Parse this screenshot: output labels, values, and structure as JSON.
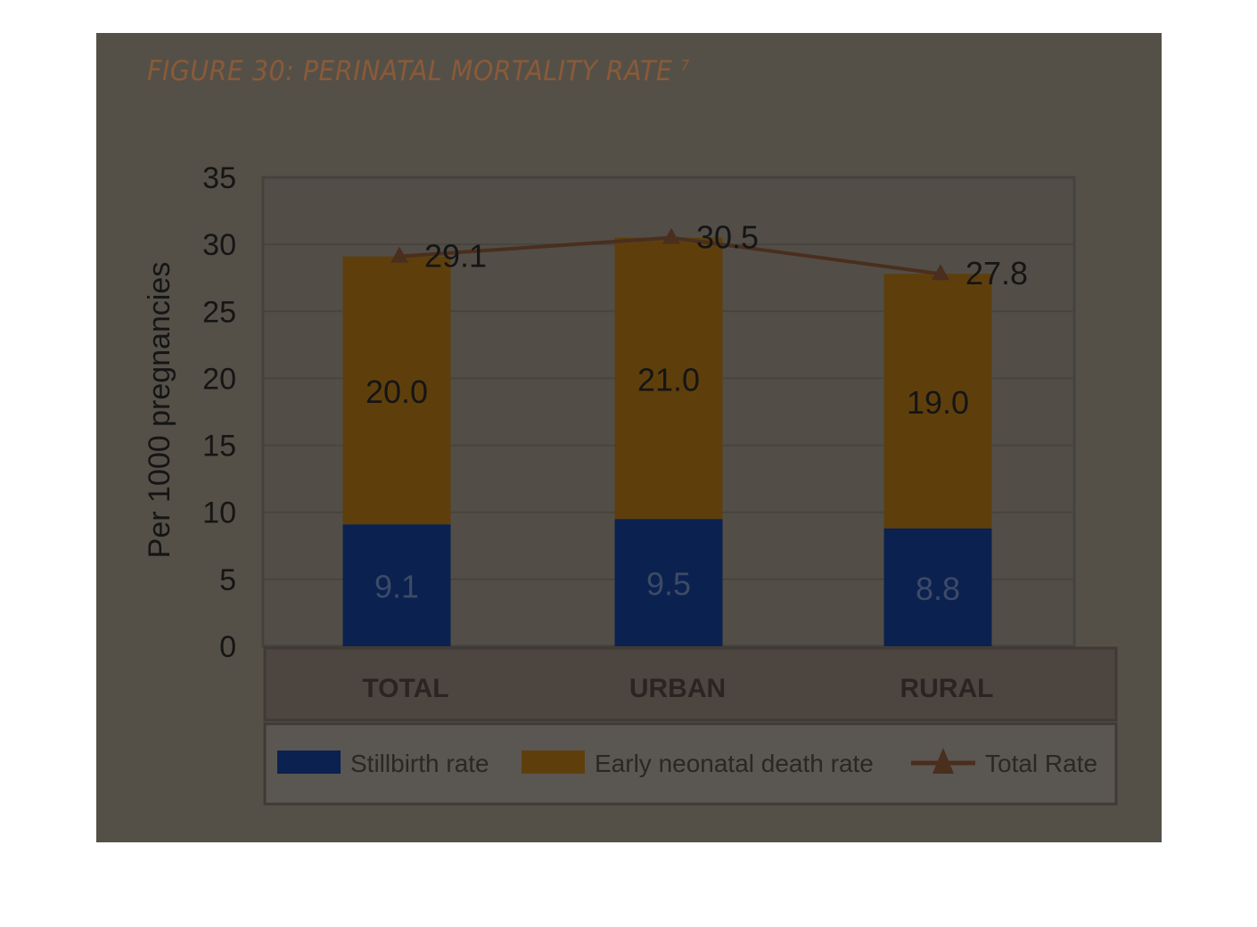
{
  "chart_data": {
    "type": "bar",
    "stacked": true,
    "title": "FIGURE 30: PERINATAL MORTALITY RATE",
    "title_superscript": "7",
    "ylabel": "Per 1000 pregnancies",
    "xlabel": "",
    "ylim": [
      0,
      35
    ],
    "yticks": [
      0,
      5,
      10,
      15,
      20,
      25,
      30,
      35
    ],
    "grid": true,
    "legend_placement": "bottom",
    "categories": [
      "TOTAL",
      "URBAN",
      "RURAL"
    ],
    "series": [
      {
        "name": "Stillbirth rate",
        "type": "bar",
        "color": "#0b2150",
        "values": [
          9.1,
          9.5,
          8.8
        ],
        "labels": [
          "9.1",
          "9.5",
          "8.8"
        ]
      },
      {
        "name": "Early neonatal death rate",
        "type": "bar",
        "color": "#5e3f0c",
        "values": [
          20.0,
          21.0,
          19.0
        ],
        "labels": [
          "20.0",
          "21.0",
          "19.0"
        ]
      },
      {
        "name": "Total Rate",
        "type": "line",
        "marker": "triangle",
        "color": "#4a2e1e",
        "values": [
          29.1,
          30.5,
          27.8
        ],
        "labels": [
          "29.1",
          "30.5",
          "27.8"
        ]
      }
    ]
  }
}
